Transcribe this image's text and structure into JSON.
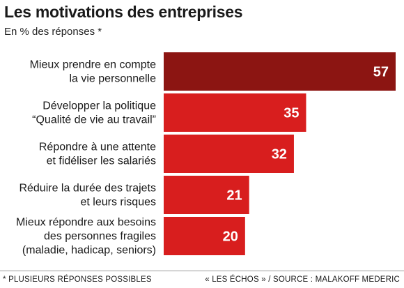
{
  "header": {
    "title": "Les motivations des entreprises",
    "subtitle": "En % des réponses *"
  },
  "chart_data": {
    "type": "bar",
    "orientation": "horizontal",
    "categories": [
      [
        "Mieux prendre en compte",
        "la vie personnelle"
      ],
      [
        "Développer la politique",
        "“Qualité de vie au travail”"
      ],
      [
        "Répondre à une attente",
        "et fidéliser les salariés"
      ],
      [
        "Réduire la durée des trajets",
        "et leurs risques"
      ],
      [
        "Mieux répondre aux besoins",
        "des personnes fragiles",
        "(maladie, hadicap, seniors)"
      ]
    ],
    "values": [
      57,
      35,
      32,
      21,
      20
    ],
    "value_labels": [
      "57",
      "35",
      "32",
      "21",
      "20"
    ],
    "xlim": [
      0,
      57
    ],
    "grid": false,
    "legend": "none",
    "colors": {
      "highlight": "#8c1512",
      "bar": "#d81e1e",
      "label_text": "#ffffff"
    }
  },
  "footer": {
    "note": "* PLUSIEURS RÉPONSES POSSIBLES",
    "source": "« LES ÉCHOS » / SOURCE : MALAKOFF MEDERIC"
  }
}
